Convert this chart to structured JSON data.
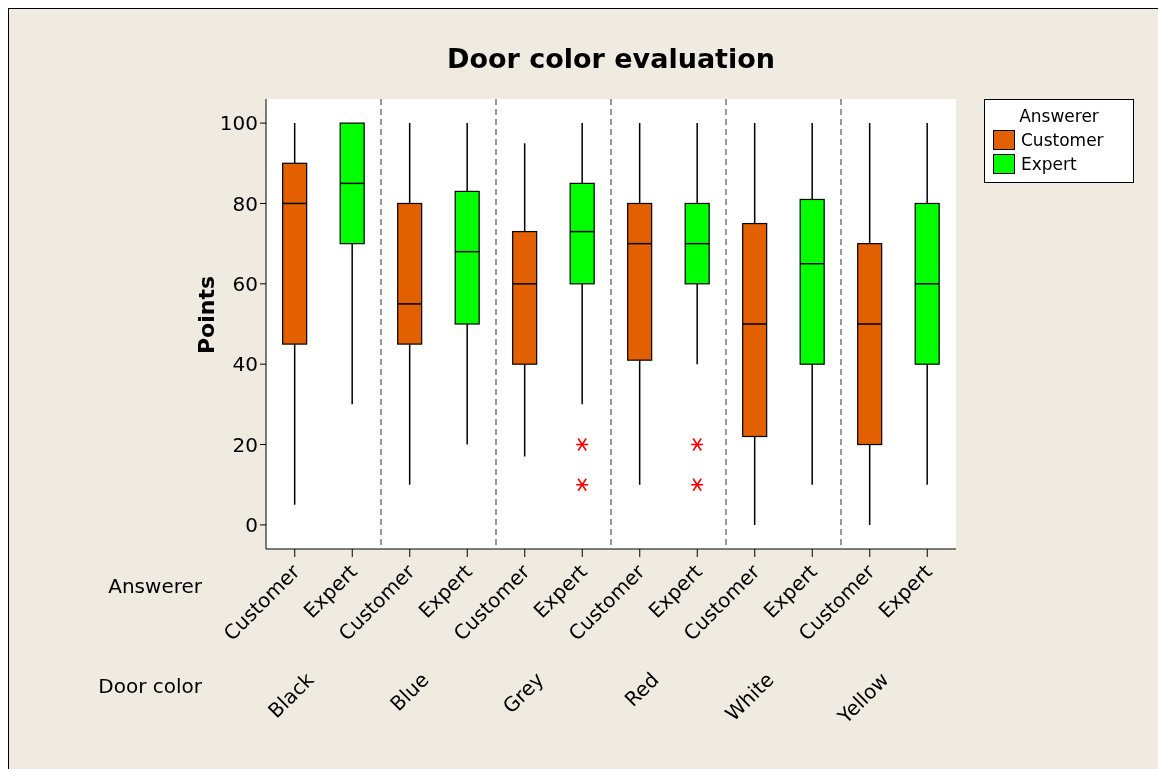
{
  "chart_data": {
    "type": "box",
    "title": "Door color evaluation",
    "ylabel": "Points",
    "xlabel": "Door color",
    "legend_title": "Answerer",
    "categories": [
      "Black",
      "Blue",
      "Grey",
      "Red",
      "White",
      "Yellow"
    ],
    "series": [
      {
        "name": "Customer",
        "color": "#e36000",
        "boxes": [
          {
            "low": 5,
            "q1": 45,
            "median": 80,
            "q3": 90,
            "high": 100
          },
          {
            "low": 10,
            "q1": 45,
            "median": 55,
            "q3": 80,
            "high": 100
          },
          {
            "low": 17,
            "q1": 40,
            "median": 60,
            "q3": 73,
            "high": 95
          },
          {
            "low": 10,
            "q1": 41,
            "median": 70,
            "q3": 80,
            "high": 100
          },
          {
            "low": 0,
            "q1": 22,
            "median": 50,
            "q3": 75,
            "high": 100
          },
          {
            "low": 0,
            "q1": 20,
            "median": 50,
            "q3": 70,
            "high": 100
          }
        ]
      },
      {
        "name": "Expert",
        "color": "#00ff00",
        "boxes": [
          {
            "low": 30,
            "q1": 70,
            "median": 85,
            "q3": 100,
            "high": 100
          },
          {
            "low": 20,
            "q1": 50,
            "median": 68,
            "q3": 83,
            "high": 100
          },
          {
            "low": 30,
            "q1": 60,
            "median": 73,
            "q3": 85,
            "high": 100,
            "outliers": [
              20,
              10
            ]
          },
          {
            "low": 40,
            "q1": 60,
            "median": 70,
            "q3": 80,
            "high": 100,
            "outliers": [
              20,
              10
            ]
          },
          {
            "low": 10,
            "q1": 40,
            "median": 65,
            "q3": 81,
            "high": 100
          },
          {
            "low": 10,
            "q1": 40,
            "median": 60,
            "q3": 80,
            "high": 100
          }
        ]
      }
    ],
    "ylim": [
      -6,
      106
    ],
    "yticks": [
      0,
      20,
      40,
      60,
      80,
      100
    ],
    "grid": "x",
    "legend": "right"
  }
}
